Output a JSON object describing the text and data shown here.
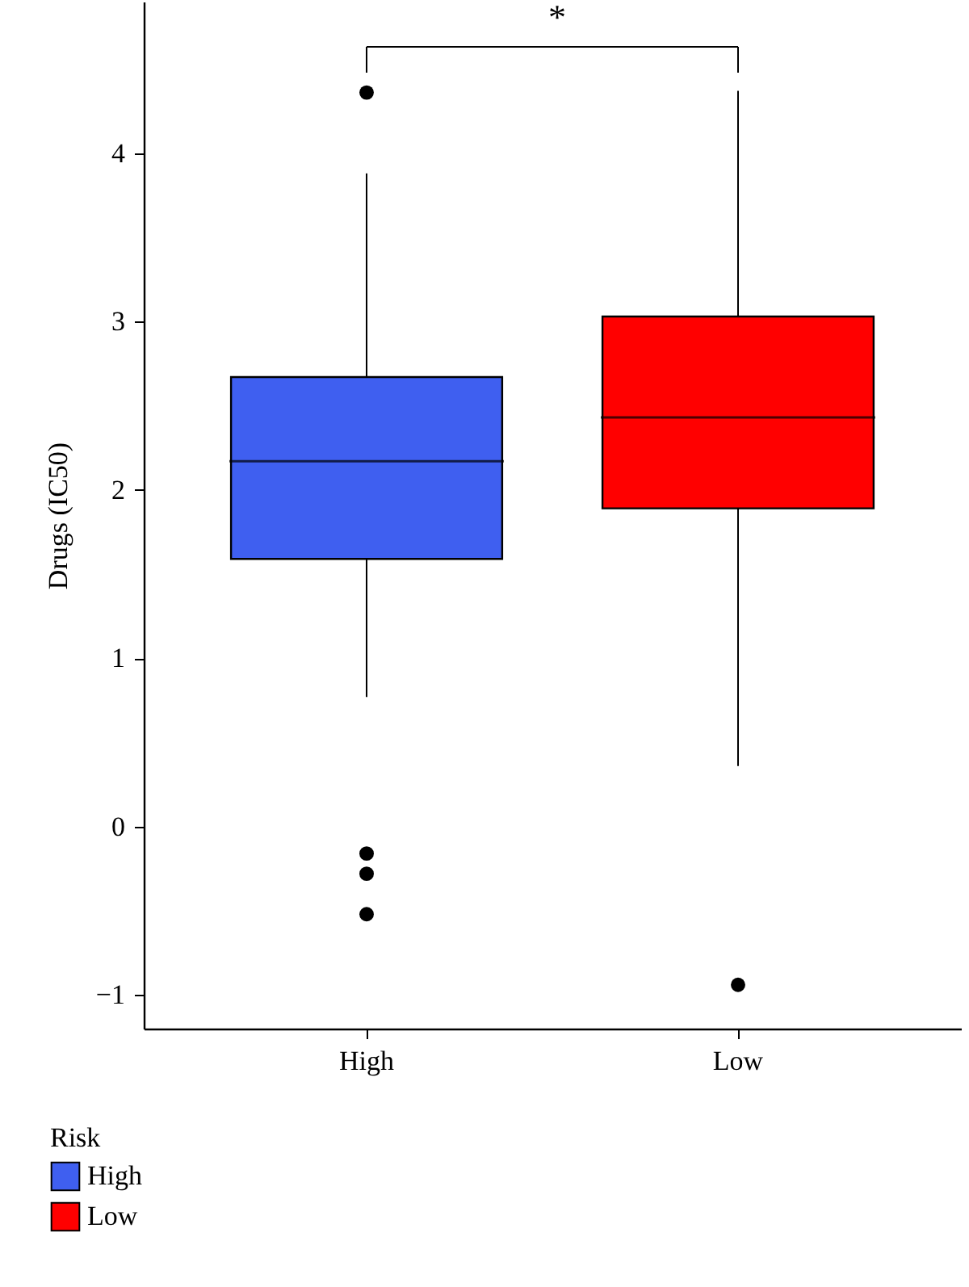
{
  "chart_data": {
    "type": "box",
    "ylabel": "Drugs (IC50)",
    "legend_title": "Risk",
    "legend": "bottom left",
    "grid": false,
    "categories": [
      "High",
      "Low"
    ],
    "series": [
      {
        "name": "High",
        "color": "#3f5ff0",
        "boxes": [
          {
            "low": 0.77,
            "q1": 1.59,
            "median": 2.17,
            "q3": 2.67,
            "high": 3.88,
            "outliers": [
              4.36,
              -0.16,
              -0.28,
              -0.52
            ]
          },
          null
        ]
      },
      {
        "name": "Low",
        "color": "#ff0000",
        "boxes": [
          null,
          {
            "low": 0.36,
            "q1": 1.89,
            "median": 2.43,
            "q3": 3.03,
            "high": 4.37,
            "outliers": [
              -0.94
            ]
          }
        ]
      }
    ],
    "ylim": [
      -1.2,
      4.9
    ],
    "yticks": [
      {
        "value": -1,
        "label": "−1"
      },
      0,
      1,
      2,
      3,
      4
    ],
    "annotations": [
      "*"
    ]
  }
}
